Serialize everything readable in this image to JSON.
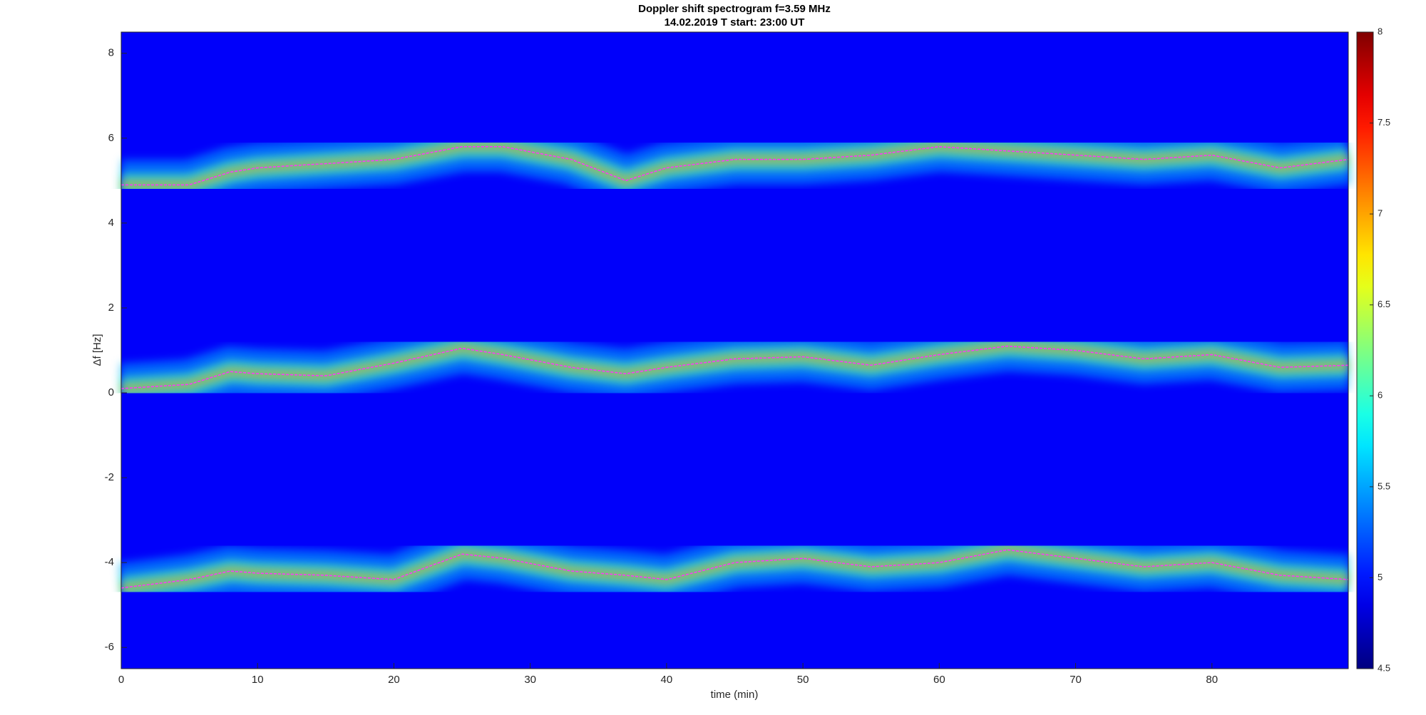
{
  "chart_data": {
    "type": "spectrogram",
    "title": "Doppler shift spectrogram f=3.59 MHz",
    "subtitle": "14.02.2019   T start: 23:00 UT",
    "x_label": "time (min)",
    "y_label": "Δf [Hz]",
    "xlim": [
      0,
      90
    ],
    "xticks": [
      0,
      10,
      20,
      30,
      40,
      50,
      60,
      70,
      80
    ],
    "ylim": [
      -6.5,
      8.5
    ],
    "yticks": [
      -6,
      -4,
      -2,
      0,
      2,
      4,
      6,
      8
    ],
    "clim": [
      4.5,
      8
    ],
    "cticks": [
      4.5,
      5,
      5.5,
      6,
      6.5,
      7,
      7.5,
      8
    ],
    "colormap": "jet",
    "x": [
      0,
      5,
      8,
      10,
      15,
      20,
      25,
      28,
      33,
      37,
      40,
      45,
      50,
      55,
      60,
      65,
      70,
      75,
      80,
      85,
      90
    ],
    "series": [
      {
        "color": "#ff33ff",
        "values": [
          4.9,
          4.9,
          5.2,
          5.3,
          5.4,
          5.5,
          5.8,
          5.8,
          5.5,
          5.0,
          5.3,
          5.5,
          5.5,
          5.6,
          5.8,
          5.7,
          5.6,
          5.5,
          5.6,
          5.3,
          5.5
        ]
      },
      {
        "color": "#ff33ff",
        "values": [
          0.1,
          0.2,
          0.5,
          0.45,
          0.4,
          0.7,
          1.05,
          0.9,
          0.6,
          0.45,
          0.6,
          0.8,
          0.85,
          0.65,
          0.9,
          1.1,
          1.0,
          0.8,
          0.9,
          0.6,
          0.65
        ]
      },
      {
        "color": "#ff33ff",
        "values": [
          -4.6,
          -4.4,
          -4.2,
          -4.25,
          -4.3,
          -4.4,
          -3.8,
          -3.9,
          -4.2,
          -4.3,
          -4.4,
          -4.0,
          -3.9,
          -4.1,
          -4.0,
          -3.7,
          -3.9,
          -4.1,
          -4.0,
          -4.3,
          -4.4
        ]
      }
    ]
  }
}
